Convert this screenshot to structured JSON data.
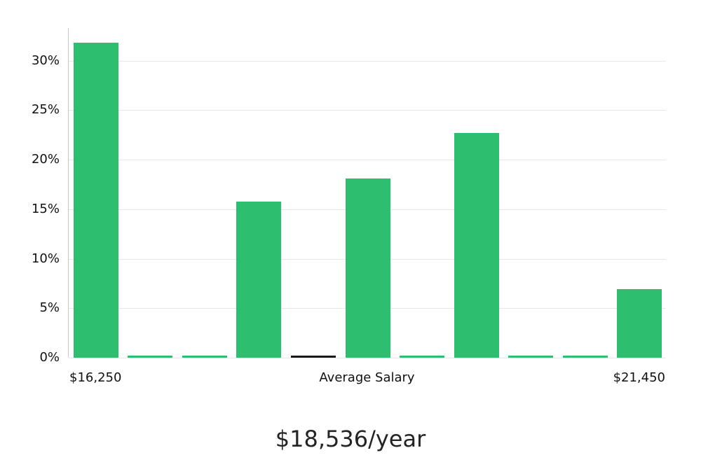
{
  "title": "$18,536/year",
  "chart_data": {
    "type": "bar",
    "title": "$18,536/year",
    "xlabel": "",
    "ylabel": "",
    "y_ticks": [
      0,
      5,
      10,
      15,
      20,
      25,
      30
    ],
    "y_tick_suffix": "%",
    "ylim": [
      0,
      33.3
    ],
    "grid": true,
    "legend": false,
    "x_tick_labels": [
      {
        "label": "$16,250",
        "position": "left"
      },
      {
        "label": "Average Salary",
        "position": "center"
      },
      {
        "label": "$21,450",
        "position": "right"
      }
    ],
    "bars": [
      {
        "value": 31.8,
        "color": "#2ebe70"
      },
      {
        "value": 0.2,
        "color": "#2ebe70"
      },
      {
        "value": 0.2,
        "color": "#2ebe70"
      },
      {
        "value": 15.8,
        "color": "#2ebe70"
      },
      {
        "value": 0.2,
        "color": "#1a1a1a"
      },
      {
        "value": 18.1,
        "color": "#2ebe70"
      },
      {
        "value": 0.2,
        "color": "#2ebe70"
      },
      {
        "value": 22.7,
        "color": "#2ebe70"
      },
      {
        "value": 0.2,
        "color": "#2ebe70"
      },
      {
        "value": 0.2,
        "color": "#2ebe70"
      },
      {
        "value": 6.9,
        "color": "#2ebe70"
      }
    ],
    "colors": {
      "bar": "#2ebe70",
      "average_marker": "#1a1a1a",
      "grid": "#e8e8e8",
      "axis": "#c9c9c9",
      "text": "#111111",
      "title_text": "#242424"
    }
  }
}
